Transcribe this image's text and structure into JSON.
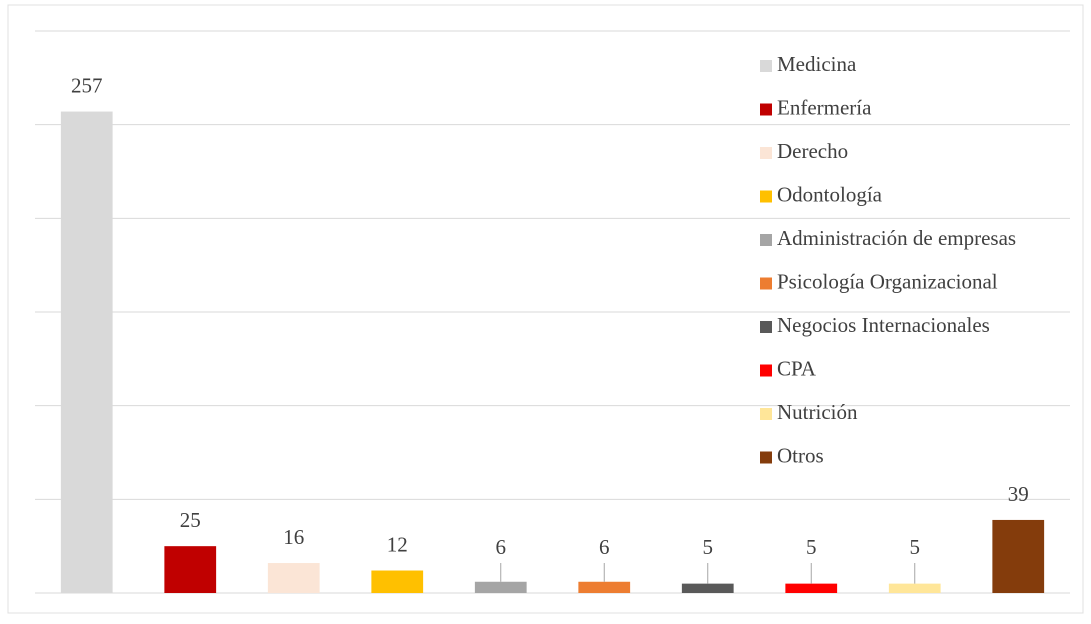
{
  "chart_data": {
    "type": "bar",
    "categories": [
      "Medicina",
      "Enfermería",
      "Derecho",
      "Odontología",
      "Administración de empresas",
      "Psicología Organizacional",
      "Negocios Internacionales",
      "CPA",
      "Nutrición",
      "Otros"
    ],
    "values": [
      257,
      25,
      16,
      12,
      6,
      6,
      5,
      5,
      5,
      39
    ],
    "colors": [
      "#d9d9d9",
      "#c00000",
      "#fbe5d6",
      "#ffc000",
      "#a5a5a5",
      "#ed7d31",
      "#595959",
      "#ff0000",
      "#ffe699",
      "#843c0c"
    ],
    "ylim": [
      0,
      300
    ],
    "yticks": [
      0,
      50,
      100,
      150,
      200,
      250,
      300
    ],
    "grid": true,
    "legend": "right"
  }
}
